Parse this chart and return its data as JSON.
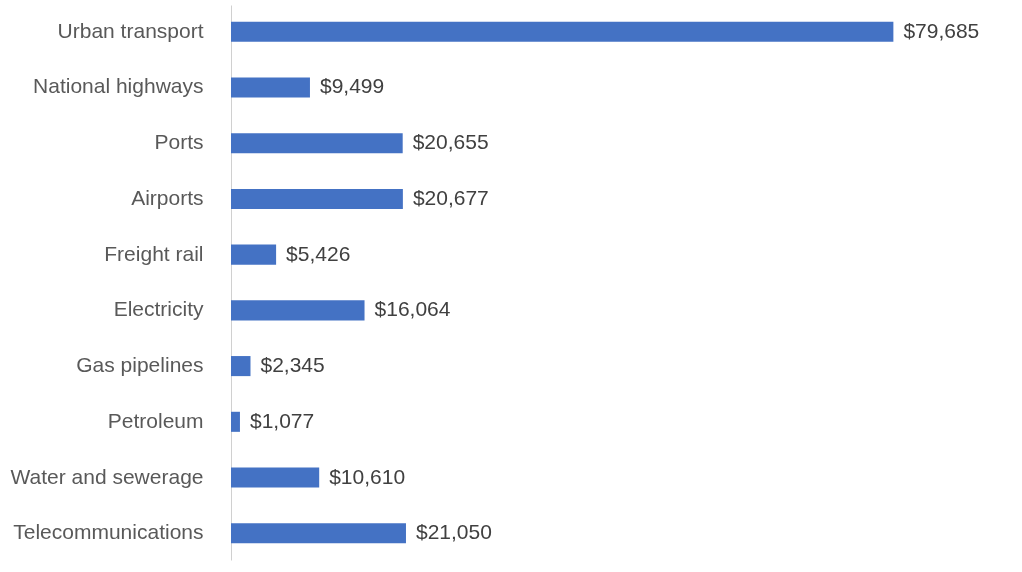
{
  "chart_data": {
    "type": "bar",
    "orientation": "horizontal",
    "categories": [
      "Urban transport",
      "National highways",
      "Ports",
      "Airports",
      "Freight rail",
      "Electricity",
      "Gas pipelines",
      "Petroleum",
      "Water and sewerage",
      "Telecommunications"
    ],
    "values": [
      79685,
      9499,
      20655,
      20677,
      5426,
      16064,
      2345,
      1077,
      10610,
      21050
    ],
    "value_labels": [
      "$79,685",
      "$9,499",
      "$20,655",
      "$20,677",
      "$5,426",
      "$16,064",
      "$2,345",
      "$1,077",
      "$10,610",
      "$21,050"
    ],
    "color": "#4472c4",
    "grid": false
  }
}
